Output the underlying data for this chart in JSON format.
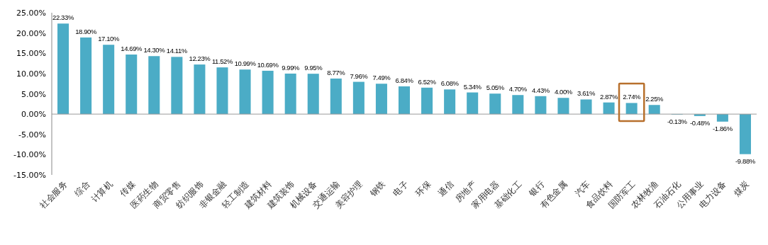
{
  "chart_data": {
    "type": "bar",
    "categories": [
      "社会服务",
      "综合",
      "计算机",
      "传媒",
      "医药生物",
      "商贸零售",
      "纺织服饰",
      "非银金融",
      "轻工制造",
      "建筑材料",
      "建筑装饰",
      "机械设备",
      "交通运输",
      "美容护理",
      "钢铁",
      "电子",
      "环保",
      "通信",
      "房地产",
      "家用电器",
      "基础化工",
      "银行",
      "有色金属",
      "汽车",
      "食品饮料",
      "国防军工",
      "农林牧渔",
      "石油石化",
      "公用事业",
      "电力设备",
      "煤炭"
    ],
    "values": [
      22.33,
      18.9,
      17.1,
      14.69,
      14.3,
      14.11,
      12.23,
      11.52,
      10.99,
      10.69,
      9.99,
      9.95,
      8.77,
      7.96,
      7.49,
      6.84,
      6.52,
      6.08,
      5.34,
      5.05,
      4.7,
      4.43,
      4.0,
      3.61,
      2.87,
      2.74,
      2.25,
      -0.13,
      -0.48,
      -1.86,
      -9.88
    ],
    "value_labels": [
      "22.33%",
      "18.90%",
      "17.10%",
      "14.69%",
      "14.30%",
      "14.11%",
      "12.23%",
      "11.52%",
      "10.99%",
      "10.69%",
      "9.99%",
      "9.95%",
      "8.77%",
      "7.96%",
      "7.49%",
      "6.84%",
      "6.52%",
      "6.08%",
      "5.34%",
      "5.05%",
      "4.70%",
      "4.43%",
      "4.00%",
      "3.61%",
      "2.87%",
      "2.74%",
      "2.25%",
      "-0.13%",
      "-0.48%",
      "-1.86%",
      "-9.88%"
    ],
    "color": "#4bacc6",
    "ylim": [
      -15,
      25
    ],
    "yticks": [
      {
        "value": -15,
        "label": "-15.00%"
      },
      {
        "value": -10,
        "label": "-10.00%"
      },
      {
        "value": -5,
        "label": "-5.00%"
      },
      {
        "value": 0,
        "label": "0.00%"
      },
      {
        "value": 5,
        "label": "5.00%"
      },
      {
        "value": 10,
        "label": "10.00%"
      },
      {
        "value": 15,
        "label": "15.00%"
      },
      {
        "value": 20,
        "label": "20.00%"
      },
      {
        "value": 25,
        "label": "25.00%"
      }
    ],
    "orientation": "vertical"
  }
}
